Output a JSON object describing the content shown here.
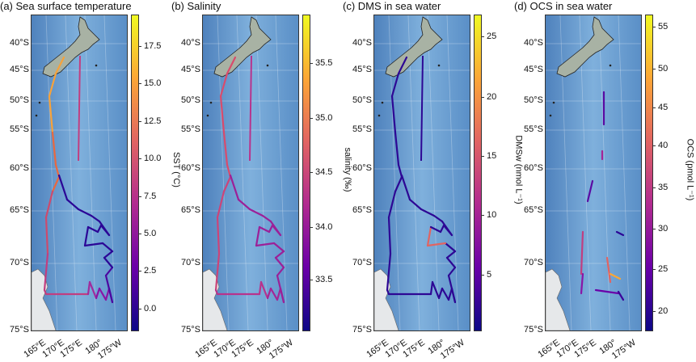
{
  "panels": [
    {
      "title": "(a) Sea surface temperature",
      "colorbar_label": "SST (°C)",
      "colorbar_ticks": [
        "17.5",
        "15.0",
        "12.5",
        "10.0",
        "7.5",
        "5.0",
        "2.5",
        "0.0"
      ]
    },
    {
      "title": "(b) Salinity",
      "colorbar_label": "salinity (‰)",
      "colorbar_ticks": [
        "35.5",
        "35.0",
        "34.5",
        "34.0",
        "33.5"
      ]
    },
    {
      "title": "(c) DMS in sea water",
      "colorbar_label": "DMSw (nmol L⁻¹)",
      "colorbar_ticks": [
        "25",
        "20",
        "15",
        "10",
        "5"
      ]
    },
    {
      "title": "(d) OCS in sea water",
      "colorbar_label": "OCS (pmol L⁻¹)",
      "colorbar_ticks": [
        "55",
        "50",
        "45",
        "40",
        "35",
        "30",
        "25",
        "20"
      ]
    }
  ],
  "lat_labels": [
    "40°S",
    "45°S",
    "50°S",
    "55°S",
    "60°S",
    "65°S",
    "70°S",
    "75°S"
  ],
  "lon_labels": [
    "165°E",
    "170°E",
    "175°E",
    "180°",
    "175°W"
  ],
  "colors": {
    "ocean": "#6f9fcf",
    "land": "#a8b2a4",
    "antarctica": "#e6e8ea",
    "grid": "#ffffff",
    "cmap": [
      "#0d0887",
      "#6a00a8",
      "#b12a90",
      "#e16462",
      "#fca636",
      "#f0f921"
    ]
  }
}
